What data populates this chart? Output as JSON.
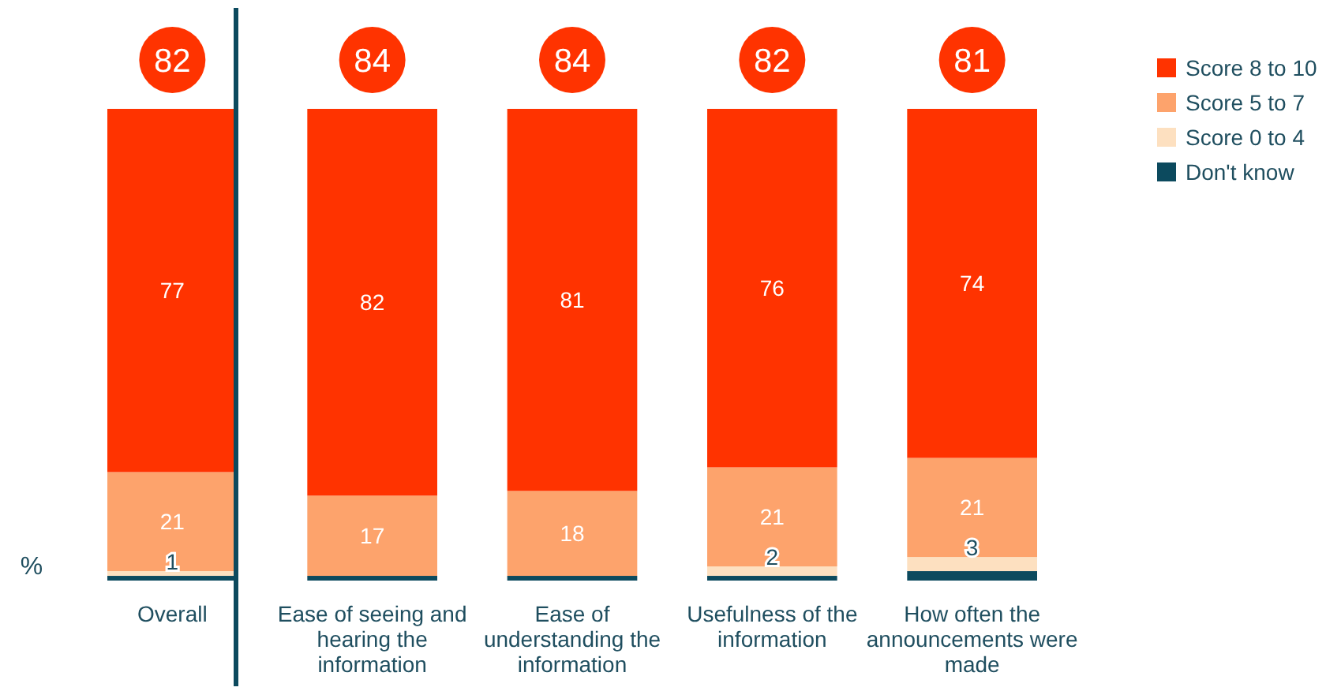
{
  "chart_data": {
    "type": "bar",
    "stacked": true,
    "ylabel": "%",
    "categories": [
      "Overall",
      "Ease of seeing and hearing the information",
      "Ease of understanding the information",
      "Usefulness of the information",
      "How often the announcements were made"
    ],
    "series": [
      {
        "name": "Don't know",
        "color": "#0c4a5e",
        "values": [
          1,
          1,
          1,
          1,
          2
        ],
        "value_labels": [
          null,
          null,
          null,
          null,
          null
        ]
      },
      {
        "name": "Score 0 to 4",
        "color": "#fde0c0",
        "values": [
          1,
          0,
          0,
          2,
          3
        ],
        "value_labels": [
          "1",
          null,
          null,
          "2",
          "3"
        ]
      },
      {
        "name": "Score 5 to 7",
        "color": "#fda36c",
        "values": [
          21,
          17,
          18,
          21,
          21
        ],
        "value_labels": [
          "21",
          "17",
          "18",
          "21",
          "21"
        ]
      },
      {
        "name": "Score 8 to 10",
        "color": "#ff3300",
        "values": [
          77,
          82,
          81,
          76,
          74
        ],
        "value_labels": [
          "77",
          "82",
          "81",
          "76",
          "74"
        ]
      }
    ],
    "annotations": [
      "82",
      "84",
      "84",
      "82",
      "81"
    ],
    "legend": "top right"
  }
}
